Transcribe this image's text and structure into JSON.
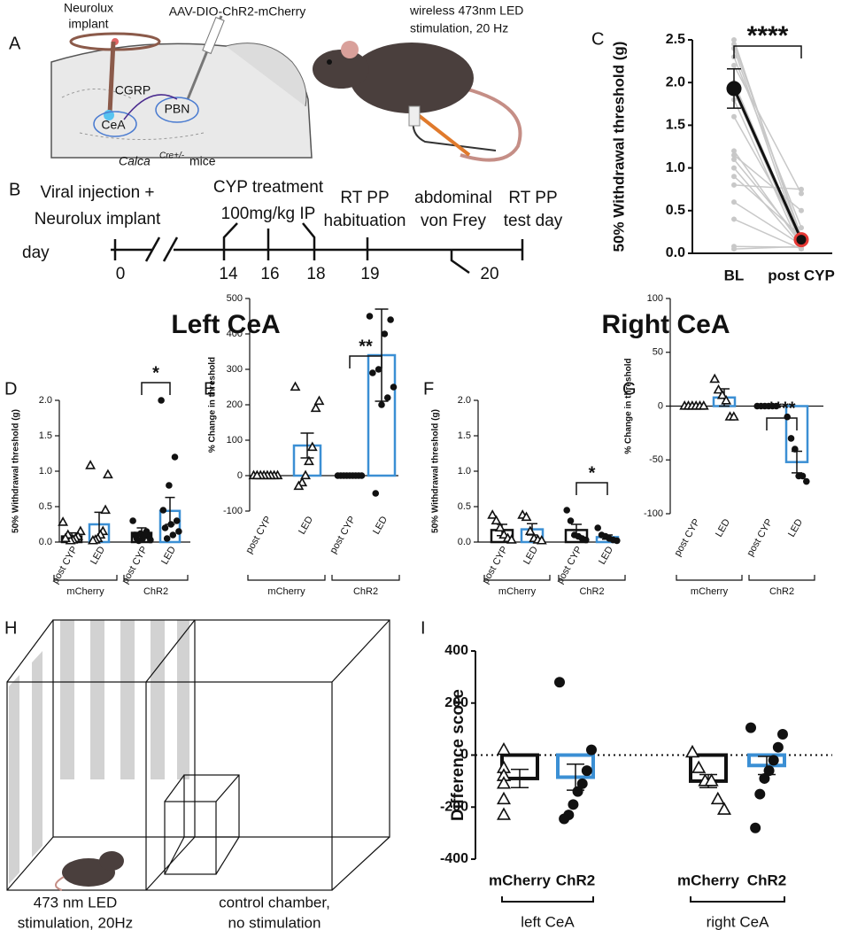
{
  "panel_A": {
    "panel_label": "A",
    "implant_label": [
      "Neurolux",
      "implant"
    ],
    "virus": "AAV-DIO-ChR2-mCherry",
    "pathway": "CGRP",
    "source": "CeA",
    "target": "PBN",
    "mouse_line": {
      "gene": "Calca",
      "superscript": "Cre+/-",
      "suffix": "mice"
    },
    "stimulation": [
      "wireless 473nm LED",
      "stimulation, 20 Hz"
    ]
  },
  "panel_B": {
    "panel_label": "B",
    "axis_label": "day",
    "days": [
      0,
      14,
      16,
      18,
      19,
      20
    ],
    "events": [
      [
        "Viral injection +",
        "Neurolux implant"
      ],
      [
        "CYP treatment",
        "100mg/kg IP"
      ],
      [
        "RT PP",
        "habituation"
      ],
      [
        "abdominal",
        "von Frey"
      ],
      [
        "RT PP",
        "test day"
      ]
    ]
  },
  "headings": [
    "Left CeA",
    "Right CeA"
  ],
  "panel_H": {
    "panel_label": "H",
    "stimulated_chamber": [
      "473 nm LED",
      "stimulation, 20Hz"
    ],
    "control_chamber": [
      "control chamber,",
      "no stimulation"
    ]
  },
  "chart_data": [
    {
      "type": "paired",
      "panel_label": "C",
      "ylabel": "50% Withdrawal threshold (g)",
      "categories": [
        "BL",
        "post CYP"
      ],
      "values": [
        1.93,
        0.16
      ],
      "errors": [
        0.23,
        0.01
      ],
      "mean_colors": [
        "#111111",
        "#e53935"
      ],
      "line_color": "#c8c8c8",
      "subjects": [
        [
          2.5,
          0.15
        ],
        [
          2.45,
          0.2
        ],
        [
          2.4,
          0.1
        ],
        [
          2.3,
          0.3
        ],
        [
          2.2,
          0.7
        ],
        [
          2.0,
          0.15
        ],
        [
          1.9,
          0.1
        ],
        [
          1.8,
          0.05
        ],
        [
          1.6,
          0.2
        ],
        [
          1.2,
          0.1
        ],
        [
          1.15,
          0.5
        ],
        [
          1.1,
          0.15
        ],
        [
          1.0,
          0.08
        ],
        [
          0.9,
          0.2
        ],
        [
          0.8,
          0.75
        ],
        [
          0.6,
          0.1
        ],
        [
          0.4,
          0.05
        ],
        [
          0.08,
          0.07
        ],
        [
          0.05,
          0.08
        ]
      ],
      "significance": "****",
      "ylim": [
        0,
        2.5
      ],
      "yticks": [
        {
          "value": 0,
          "label": "0.0"
        },
        0.5,
        {
          "value": 1,
          "label": "1.0"
        },
        1.5,
        {
          "value": 2,
          "label": "2.0"
        },
        2.5
      ]
    },
    {
      "type": "bar",
      "panel_label": "D",
      "ylabel": "50% Withdrawal threshold (g)",
      "categories": [
        "post CYP",
        "LED",
        "post CYP",
        "LED"
      ],
      "group_labels": [
        "mCherry",
        "ChR2"
      ],
      "values": [
        0.08,
        0.25,
        0.13,
        0.44
      ],
      "errors": [
        0.05,
        0.17,
        0.07,
        0.19
      ],
      "colors": [
        "#111111",
        "#3b8fd4",
        "#111111",
        "#3b8fd4"
      ],
      "markers": [
        "triangle",
        "triangle",
        "circle",
        "circle"
      ],
      "points": [
        [
          0.28,
          0.15,
          0.08,
          0.05,
          0.03,
          0.02,
          0.1,
          0.05
        ],
        [
          1.08,
          0.95,
          0.45,
          0.15,
          0.1,
          0.05,
          0.03,
          0.02
        ],
        [
          0.3,
          0.15,
          0.12,
          0.1,
          0.08,
          0.05,
          0.05,
          0.03,
          0.1,
          0.02
        ],
        [
          2.0,
          1.2,
          0.8,
          0.45,
          0.3,
          0.25,
          0.2,
          0.15,
          0.1,
          0.05
        ]
      ],
      "significance": "*",
      "ylim": [
        0,
        2
      ],
      "yticks": [
        {
          "value": 0,
          "label": "0.0"
        },
        0.5,
        {
          "value": 1,
          "label": "1.0"
        },
        1.5,
        {
          "value": 2,
          "label": "2.0"
        }
      ]
    },
    {
      "type": "bar",
      "panel_label": "E",
      "ylabel": "% Change in threshold",
      "categories": [
        "post CYP",
        "LED",
        "post CYP",
        "LED"
      ],
      "group_labels": [
        "mCherry",
        "ChR2"
      ],
      "values": [
        0,
        85,
        0,
        340
      ],
      "errors": [
        0,
        35,
        0,
        130
      ],
      "colors": [
        "#111111",
        "#3b8fd4",
        "#111111",
        "#3b8fd4"
      ],
      "markers": [
        "triangle",
        "triangle",
        "circle",
        "circle"
      ],
      "points": [
        [
          0,
          0,
          0,
          0,
          0,
          0,
          0,
          0
        ],
        [
          250,
          210,
          190,
          80,
          40,
          0,
          -20,
          -30
        ],
        [
          0,
          0,
          0,
          0,
          0,
          0,
          0,
          0,
          0
        ],
        [
          450,
          440,
          400,
          300,
          290,
          250,
          220,
          200,
          -50
        ]
      ],
      "significance": "**",
      "ylim": [
        -100,
        500
      ],
      "yticks": [
        -100,
        0,
        100,
        200,
        300,
        400,
        500
      ]
    },
    {
      "type": "bar",
      "panel_label": "F",
      "ylabel": "50% Withdrawal threshold (g)",
      "categories": [
        "post CYP",
        "LED",
        "post CYP",
        "LED"
      ],
      "group_labels": [
        "mCherry",
        "ChR2"
      ],
      "values": [
        0.17,
        0.18,
        0.17,
        0.07
      ],
      "errors": [
        0.08,
        0.08,
        0.08,
        0.03
      ],
      "colors": [
        "#111111",
        "#3b8fd4",
        "#111111",
        "#3b8fd4"
      ],
      "markers": [
        "triangle",
        "triangle",
        "circle",
        "circle"
      ],
      "points": [
        [
          0.38,
          0.3,
          0.2,
          0.1,
          0.05,
          0.03
        ],
        [
          0.38,
          0.35,
          0.15,
          0.05,
          0.03,
          0.02
        ],
        [
          0.45,
          0.3,
          0.1,
          0.08,
          0.05,
          0.03
        ],
        [
          0.2,
          0.1,
          0.08,
          0.05,
          0.03,
          0.02
        ]
      ],
      "significance": "*",
      "ylim": [
        0,
        2
      ],
      "yticks": [
        {
          "value": 0,
          "label": "0.0"
        },
        0.5,
        {
          "value": 1,
          "label": "1.0"
        },
        1.5,
        {
          "value": 2,
          "label": "2.0"
        }
      ]
    },
    {
      "type": "bar",
      "panel_label": "G",
      "ylabel": "% Change in threshold",
      "categories": [
        "post CYP",
        "LED",
        "post CYP",
        "LED"
      ],
      "group_labels": [
        "mCherry",
        "ChR2"
      ],
      "values": [
        0,
        8,
        0,
        -52
      ],
      "errors": [
        0,
        8,
        0,
        10
      ],
      "colors": [
        "#111111",
        "#3b8fd4",
        "#111111",
        "#3b8fd4"
      ],
      "markers": [
        "triangle",
        "triangle",
        "circle",
        "circle"
      ],
      "points": [
        [
          0,
          0,
          0,
          0,
          0,
          0
        ],
        [
          25,
          15,
          10,
          5,
          -10,
          -10
        ],
        [
          0,
          0,
          0,
          0,
          0,
          0
        ],
        [
          -10,
          -30,
          -40,
          -65,
          -65,
          -70
        ]
      ],
      "significance": "****",
      "ylim": [
        -100,
        100
      ],
      "yticks": [
        -100,
        -50,
        0,
        50,
        100
      ]
    },
    {
      "type": "bar",
      "panel_label": "I",
      "ylabel": "Difference score",
      "categories": [
        "mCherry",
        "ChR2",
        "mCherry",
        "ChR2"
      ],
      "group_labels": [
        "left CeA",
        "right CeA"
      ],
      "values": [
        -90,
        -85,
        -100,
        -40
      ],
      "errors": [
        35,
        50,
        25,
        35
      ],
      "colors": [
        "#111111",
        "#3b8fd4",
        "#111111",
        "#3b8fd4"
      ],
      "markers": [
        "triangle",
        "circle",
        "triangle",
        "circle"
      ],
      "points": [
        [
          20,
          -50,
          -80,
          -80,
          -110,
          -170,
          -230
        ],
        [
          280,
          20,
          -60,
          -110,
          -140,
          -190,
          -230,
          -245
        ],
        [
          10,
          -50,
          -100,
          -100,
          -170,
          -210
        ],
        [
          105,
          80,
          30,
          -20,
          -60,
          -90,
          -150,
          -280
        ]
      ],
      "zero_line": "dotted",
      "ylim": [
        -400,
        400
      ],
      "yticks": [
        -400,
        -200,
        0,
        200,
        400
      ]
    }
  ]
}
